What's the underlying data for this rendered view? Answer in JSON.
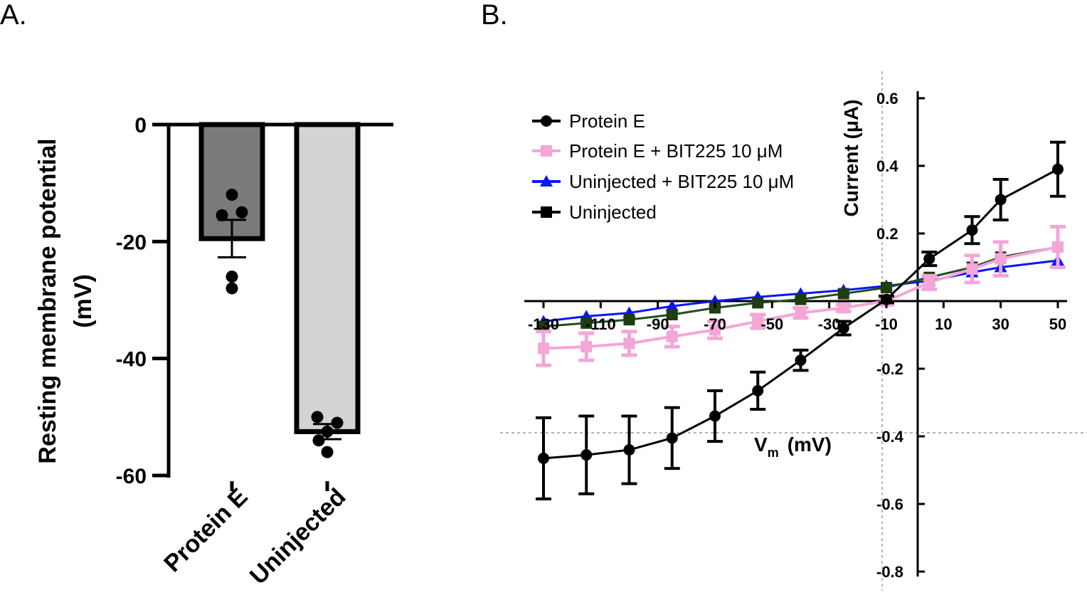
{
  "panels": {
    "a_label": "A.",
    "b_label": "B."
  },
  "chart_data": [
    {
      "type": "bar",
      "panel": "A.",
      "ylabel_line1": "Resting membrane potential",
      "ylabel_line2": "(mV)",
      "ylim": [
        -60,
        0
      ],
      "yticks": [
        0,
        -20,
        -40,
        -60
      ],
      "categories": [
        "Protein E",
        "Uninjected"
      ],
      "values": [
        -19.5,
        -52.5
      ],
      "sem": [
        3.2,
        1.3
      ],
      "colors": [
        "#7a7a7a",
        "#d3d3d3"
      ],
      "points": [
        [
          -12,
          -15.5,
          -15,
          -26,
          -28
        ],
        [
          -50,
          -51,
          -52.5,
          -54,
          -56
        ]
      ]
    },
    {
      "type": "line",
      "panel": "B.",
      "xlabel": "Vm  (mV)",
      "xlabel_main": "V",
      "xlabel_sub": "m",
      "xlabel_unit": "(mV)",
      "ylabel": "Current (μA)",
      "xlim": [
        -130,
        50
      ],
      "ylim": [
        -0.8,
        0.6
      ],
      "xticks": [
        "-130",
        "-110",
        "-90",
        "-70",
        "-50",
        "-30",
        "-10",
        "10",
        "30",
        "50"
      ],
      "yticks": [
        "0.6",
        "0.4",
        "0.2",
        "-0.2",
        "-0.4",
        "-0.6",
        "-0.8"
      ],
      "x": [
        -130,
        -115,
        -100,
        -85,
        -70,
        -55,
        -40,
        -25,
        -10,
        5,
        20,
        30,
        50
      ],
      "series": [
        {
          "name": "Protein E",
          "marker": "circle",
          "color": "#000000",
          "values": [
            -0.465,
            -0.455,
            -0.44,
            -0.405,
            -0.34,
            -0.265,
            -0.175,
            -0.08,
            0.005,
            0.125,
            0.21,
            0.3,
            0.39
          ],
          "err": [
            0.12,
            0.115,
            0.1,
            0.09,
            0.075,
            0.055,
            0.03,
            0.02,
            0.01,
            0.02,
            0.04,
            0.06,
            0.08
          ]
        },
        {
          "name": "Protein E + BIT225 10 μM",
          "marker": "square",
          "color": "#f4a6d7",
          "values": [
            -0.14,
            -0.135,
            -0.125,
            -0.105,
            -0.085,
            -0.06,
            -0.035,
            -0.02,
            0.0,
            0.055,
            0.095,
            0.125,
            0.16
          ],
          "err": [
            0.05,
            0.04,
            0.035,
            0.03,
            0.025,
            0.02,
            0.015,
            0.01,
            0.01,
            0.02,
            0.04,
            0.05,
            0.06
          ]
        },
        {
          "name": "Uninjected + BIT225 10 μM",
          "marker": "triangle",
          "color": "#0a14ff",
          "values": [
            -0.06,
            -0.045,
            -0.035,
            -0.015,
            0.0,
            0.012,
            0.022,
            0.032,
            0.045,
            0.06,
            0.085,
            0.1,
            0.12
          ],
          "err": [
            0,
            0,
            0,
            0,
            0,
            0,
            0,
            0,
            0,
            0,
            0,
            0,
            0
          ]
        },
        {
          "name": "Uninjected",
          "marker": "square",
          "color": "#000000",
          "values": [
            -0.075,
            -0.065,
            -0.055,
            -0.04,
            -0.02,
            -0.005,
            0.005,
            0.022,
            0.04,
            0.07,
            0.1,
            0.13,
            0.16
          ],
          "err": [
            0,
            0,
            0,
            0,
            0,
            0,
            0,
            0,
            0,
            0,
            0,
            0,
            0
          ]
        }
      ]
    }
  ]
}
